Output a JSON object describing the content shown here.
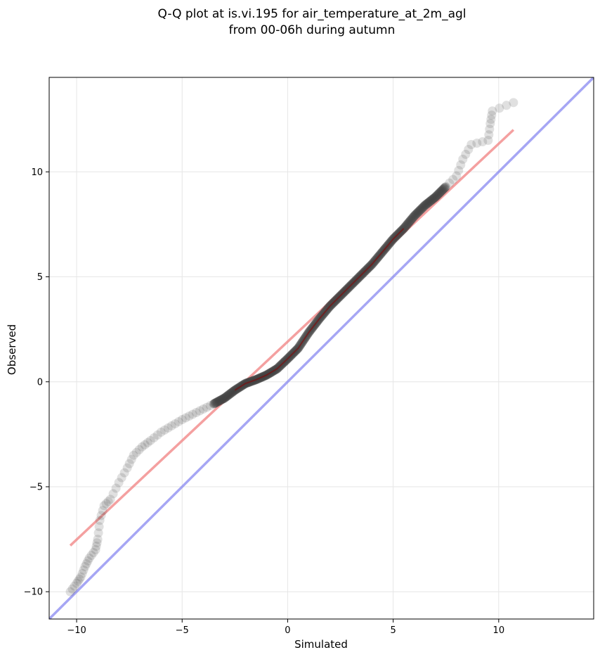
{
  "chart_data": {
    "type": "scatter",
    "title_lines": [
      "Q-Q plot at is.vi.195 for air_temperature_at_2m_agl",
      "from 00-06h during autumn"
    ],
    "xlabel": "Simulated",
    "ylabel": "Observed",
    "xlim": [
      -11.3,
      14.5
    ],
    "ylim": [
      -11.3,
      14.5
    ],
    "xticks": [
      -10,
      -5,
      0,
      5,
      10
    ],
    "yticks": [
      -10,
      -5,
      0,
      5,
      10
    ],
    "xtick_labels": [
      "−10",
      "−5",
      "0",
      "5",
      "10"
    ],
    "ytick_labels": [
      "−10",
      "−5",
      "0",
      "5",
      "10"
    ],
    "grid": true,
    "colors": {
      "points": "#404040",
      "fit_line": "#f08080",
      "identity_line": "#8080f0",
      "dense_core": "#8b0000"
    },
    "quantile_curve": [
      [
        -10.3,
        -10.0
      ],
      [
        -10.0,
        -9.6
      ],
      [
        -9.8,
        -9.3
      ],
      [
        -9.6,
        -8.8
      ],
      [
        -9.4,
        -8.4
      ],
      [
        -9.1,
        -8.0
      ],
      [
        -9.0,
        -7.5
      ],
      [
        -8.9,
        -6.6
      ],
      [
        -8.7,
        -5.9
      ],
      [
        -8.4,
        -5.6
      ],
      [
        -8.0,
        -4.8
      ],
      [
        -7.6,
        -4.1
      ],
      [
        -7.3,
        -3.5
      ],
      [
        -6.9,
        -3.1
      ],
      [
        -6.5,
        -2.8
      ],
      [
        -6.0,
        -2.4
      ],
      [
        -5.5,
        -2.1
      ],
      [
        -5.0,
        -1.8
      ],
      [
        -4.5,
        -1.55
      ],
      [
        -4.0,
        -1.3
      ],
      [
        -3.5,
        -1.05
      ],
      [
        -3.0,
        -0.78
      ],
      [
        -2.5,
        -0.4
      ],
      [
        -2.0,
        -0.08
      ],
      [
        -1.5,
        0.1
      ],
      [
        -1.0,
        0.32
      ],
      [
        -0.5,
        0.62
      ],
      [
        0.0,
        1.1
      ],
      [
        0.5,
        1.6
      ],
      [
        1.0,
        2.35
      ],
      [
        1.5,
        3.0
      ],
      [
        2.0,
        3.6
      ],
      [
        2.5,
        4.1
      ],
      [
        3.0,
        4.6
      ],
      [
        3.5,
        5.1
      ],
      [
        4.0,
        5.6
      ],
      [
        4.5,
        6.2
      ],
      [
        5.0,
        6.8
      ],
      [
        5.5,
        7.3
      ],
      [
        6.0,
        7.9
      ],
      [
        6.5,
        8.4
      ],
      [
        7.0,
        8.8
      ],
      [
        7.5,
        9.3
      ],
      [
        8.0,
        9.8
      ],
      [
        8.3,
        10.6
      ],
      [
        8.7,
        11.3
      ],
      [
        9.5,
        11.5
      ],
      [
        9.6,
        12.3
      ],
      [
        9.7,
        12.9
      ],
      [
        10.7,
        13.3
      ]
    ],
    "fit_line": [
      [
        -10.3,
        -7.8
      ],
      [
        10.7,
        12.0
      ]
    ],
    "identity_line": [
      [
        -11.3,
        -11.3
      ],
      [
        14.5,
        14.5
      ]
    ]
  }
}
